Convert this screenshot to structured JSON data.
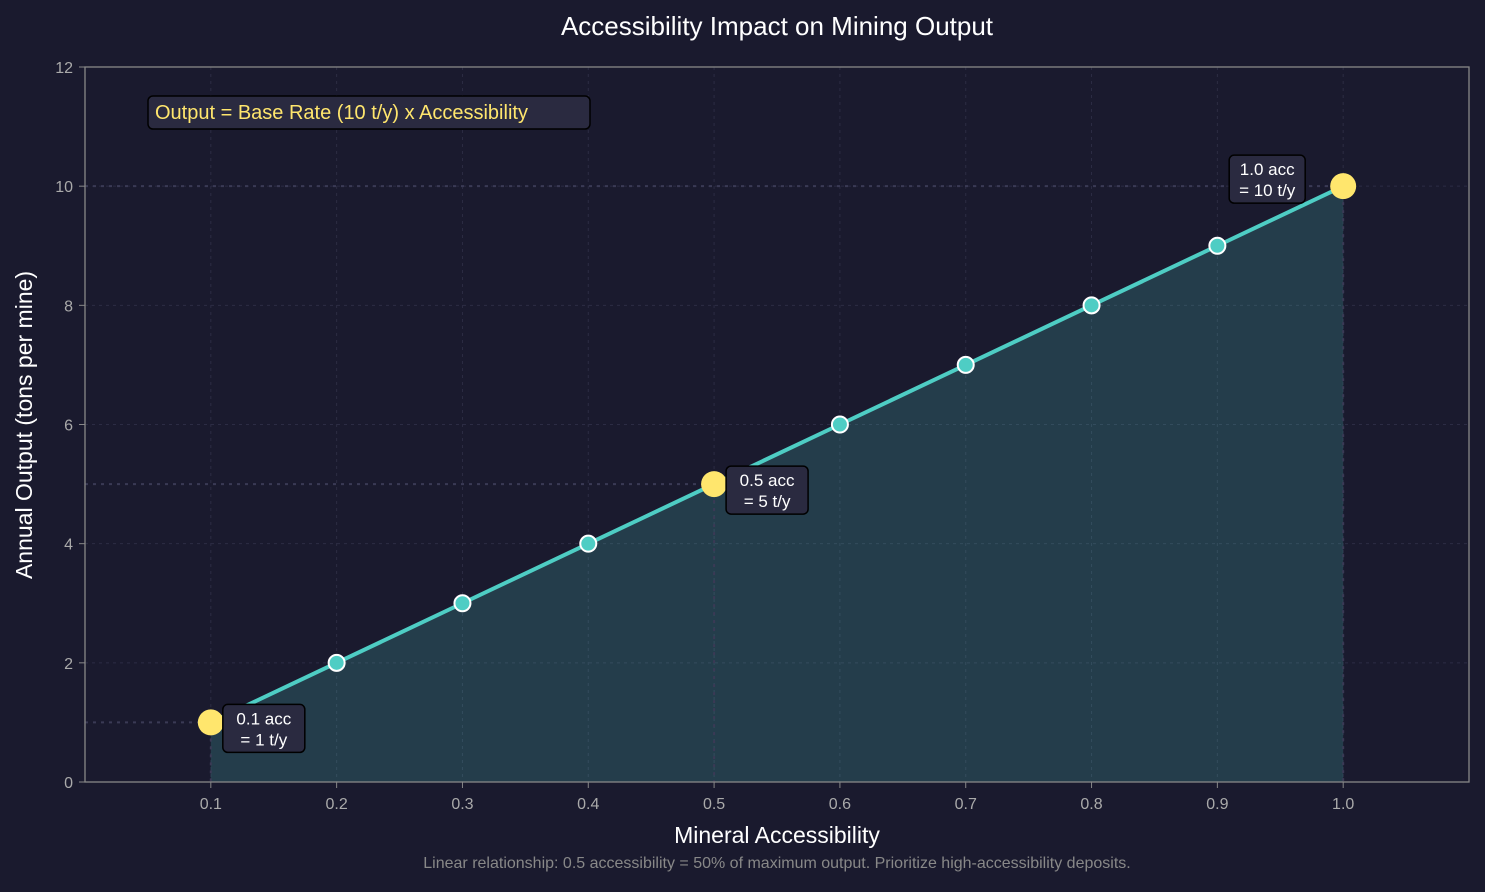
{
  "chart_data": {
    "type": "line",
    "title": "Accessibility Impact on Mining Output",
    "xlabel": "Mineral Accessibility",
    "ylabel": "Annual Output (tons per mine)",
    "xlim": [
      0.0,
      1.1
    ],
    "ylim": [
      0,
      12
    ],
    "xticks": [
      "0.1",
      "0.2",
      "0.3",
      "0.4",
      "0.5",
      "0.6",
      "0.7",
      "0.8",
      "0.9",
      "1.0"
    ],
    "yticks": [
      "0",
      "2",
      "4",
      "6",
      "8",
      "10",
      "12"
    ],
    "grid": true,
    "x": [
      0.1,
      0.2,
      0.3,
      0.4,
      0.5,
      0.6,
      0.7,
      0.8,
      0.9,
      1.0
    ],
    "y": [
      1,
      2,
      3,
      4,
      5,
      6,
      7,
      8,
      9,
      10
    ],
    "highlights": [
      {
        "x": 0.1,
        "y": 1,
        "label_line1": "0.1 acc",
        "label_line2": "= 1 t/y",
        "side": "right"
      },
      {
        "x": 0.5,
        "y": 5,
        "label_line1": "0.5 acc",
        "label_line2": "= 5 t/y",
        "side": "right"
      },
      {
        "x": 1.0,
        "y": 10,
        "label_line1": "1.0 acc",
        "label_line2": "= 10 t/y",
        "side": "left"
      }
    ],
    "formula": "Output = Base Rate (10 t/y) x Accessibility",
    "caption": "Linear relationship: 0.5 accessibility = 50% of maximum output. Prioritize high-accessibility deposits.",
    "colors": {
      "background": "#1a1a2e",
      "line": "#4ecdc4",
      "highlight": "#ffe66d",
      "text": "#ffffff",
      "tick": "#aaaaaa"
    }
  }
}
